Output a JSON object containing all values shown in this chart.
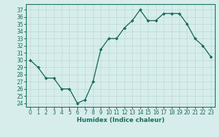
{
  "x": [
    0,
    1,
    2,
    3,
    4,
    5,
    6,
    7,
    8,
    9,
    10,
    11,
    12,
    13,
    14,
    15,
    16,
    17,
    18,
    19,
    20,
    21,
    22,
    23
  ],
  "y": [
    30,
    29,
    27.5,
    27.5,
    26,
    26,
    24,
    24.5,
    27,
    31.5,
    33,
    33,
    34.5,
    35.5,
    37,
    35.5,
    35.5,
    36.5,
    36.5,
    36.5,
    35,
    33,
    32,
    30.5
  ],
  "line_color": "#1a6b5a",
  "marker": "D",
  "markersize": 2.0,
  "linewidth": 1.0,
  "xlabel": "Humidex (Indice chaleur)",
  "xlim": [
    -0.5,
    23.5
  ],
  "ylim": [
    23.5,
    37.8
  ],
  "yticks": [
    24,
    25,
    26,
    27,
    28,
    29,
    30,
    31,
    32,
    33,
    34,
    35,
    36,
    37
  ],
  "xticks": [
    0,
    1,
    2,
    3,
    4,
    5,
    6,
    7,
    8,
    9,
    10,
    11,
    12,
    13,
    14,
    15,
    16,
    17,
    18,
    19,
    20,
    21,
    22,
    23
  ],
  "bg_color": "#d6edeb",
  "grid_color": "#b8d8d4",
  "tick_label_fontsize": 5.5,
  "xlabel_fontsize": 6.5,
  "spine_color": "#1a6b5a"
}
